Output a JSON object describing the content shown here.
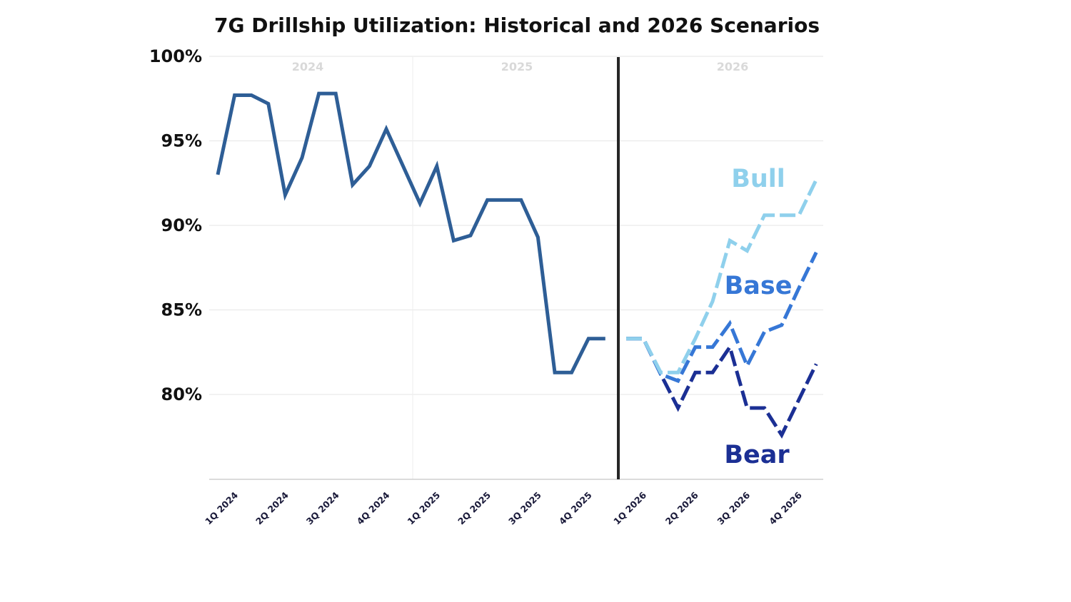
{
  "chart_data": {
    "type": "line",
    "title": "7G Drillship Utilization: Historical and 2026 Scenarios",
    "ylim": [
      75,
      100
    ],
    "y_ticks": [
      "100%",
      "95%",
      "90%",
      "85%",
      "80%"
    ],
    "y_tick_values": [
      100,
      95,
      90,
      85,
      80
    ],
    "categories": [
      "1Q 2024",
      "2Q 2024",
      "3Q 2024",
      "4Q 2024",
      "1Q 2025",
      "2Q 2025",
      "3Q 2025",
      "4Q 2025",
      "1Q 2026",
      "2Q 2026",
      "3Q 2026",
      "4Q 2026"
    ],
    "year_labels": [
      "2024",
      "2025",
      "2026"
    ],
    "grid": true,
    "historical": {
      "color": "#2e5e96",
      "values": [
        93.0,
        97.7,
        97.7,
        97.2,
        91.8,
        94.0,
        97.8,
        97.8,
        92.4,
        93.5,
        95.7,
        93.5,
        91.3,
        93.5,
        89.1,
        89.4,
        91.5,
        91.5,
        91.5,
        89.3,
        81.3,
        81.3,
        83.3,
        83.3
      ]
    },
    "series": [
      {
        "name": "Bull",
        "color": "#8fd0ec",
        "values": [
          83.3,
          83.3,
          81.3,
          81.3,
          83.3,
          85.5,
          89.1,
          88.5,
          90.6,
          90.6,
          90.6,
          92.7
        ]
      },
      {
        "name": "Base",
        "color": "#3677d6",
        "values": [
          83.3,
          83.3,
          81.2,
          80.8,
          82.8,
          82.8,
          84.2,
          81.7,
          83.7,
          84.1,
          86.3,
          88.4
        ]
      },
      {
        "name": "Bear",
        "color": "#1b2f94",
        "values": [
          83.3,
          83.3,
          81.2,
          79.2,
          81.3,
          81.3,
          82.8,
          79.2,
          79.2,
          77.6,
          79.7,
          81.8
        ]
      }
    ],
    "annotation": "vertical divider between 4Q 2025 and 1Q 2026 separating historical data from 2026 scenarios"
  }
}
